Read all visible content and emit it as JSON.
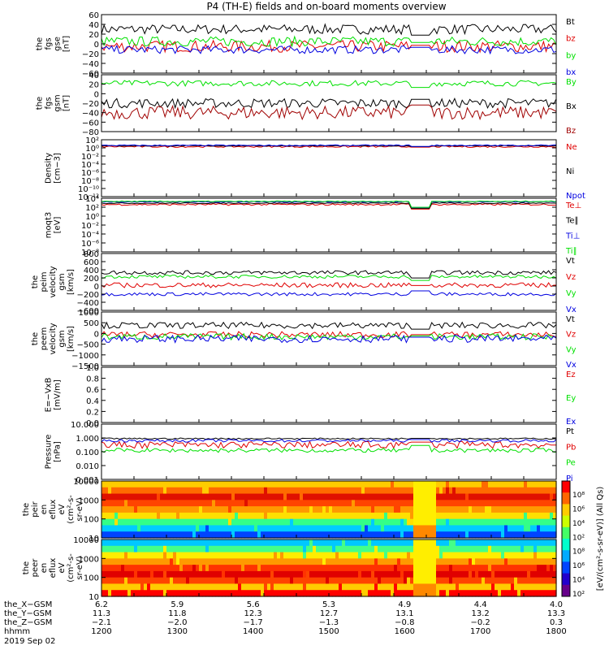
{
  "title": "P4 (TH-E) fields and on-board moments overview",
  "colors": {
    "black": "#000000",
    "red": "#e00000",
    "green": "#00e000",
    "blue": "#0000e0",
    "darkred": "#a00000"
  },
  "chart_data": [
    {
      "type": "line",
      "ylabel": [
        "the",
        "fgs",
        "gse",
        "[nT]"
      ],
      "yticks": [
        "60",
        "40",
        "20",
        "0",
        "−20",
        "−40",
        "−60"
      ],
      "ylim": [
        -60,
        60
      ],
      "series": [
        {
          "name": "Bt",
          "color": "black",
          "level": 30,
          "noise": 10
        },
        {
          "name": "bz",
          "color": "red",
          "level": -5,
          "noise": 12
        },
        {
          "name": "by",
          "color": "green",
          "level": 5,
          "noise": 10
        },
        {
          "name": "bx",
          "color": "blue",
          "level": -12,
          "noise": 8
        }
      ]
    },
    {
      "type": "line",
      "ylabel": [
        "the",
        "fgs",
        "gsm",
        "[nT]"
      ],
      "yticks": [
        "40",
        "20",
        "0",
        "−20",
        "−40",
        "−60",
        "−80"
      ],
      "ylim": [
        -80,
        40
      ],
      "series": [
        {
          "name": "By",
          "color": "green",
          "level": 22,
          "noise": 6
        },
        {
          "name": "Bx",
          "color": "black",
          "level": -20,
          "noise": 10
        },
        {
          "name": "Bz",
          "color": "darkred",
          "level": -40,
          "noise": 14
        }
      ]
    },
    {
      "type": "line",
      "ylabel": [
        "Density",
        "[cm−3]"
      ],
      "yticks": [
        "10²",
        "10⁰",
        "10⁻²",
        "10⁻⁴",
        "10⁻⁶",
        "10⁻⁸",
        "10⁻¹⁰",
        "10⁻¹²"
      ],
      "ylim": [
        -12,
        2
      ],
      "scale": "log",
      "series": [
        {
          "name": "Ne",
          "color": "red",
          "level": 0.3,
          "noise": 0.2
        },
        {
          "name": "Ni",
          "color": "black",
          "level": 0.5,
          "noise": 0.1
        },
        {
          "name": "Npot",
          "color": "blue",
          "level": 0.6,
          "noise": 0.15
        }
      ]
    },
    {
      "type": "line",
      "ylabel": [
        "moqt3",
        "[eV]"
      ],
      "yticks": [
        "10⁴",
        "10²",
        "10⁰",
        "10⁻²",
        "10⁻⁴",
        "10⁻⁶",
        "10⁻⁸"
      ],
      "ylim": [
        -8,
        4
      ],
      "scale": "log",
      "series": [
        {
          "name": "Te⊥",
          "color": "red",
          "level": 2.6,
          "noise": 0.2
        },
        {
          "name": "Te∥",
          "color": "black",
          "level": 2.9,
          "noise": 0.1
        },
        {
          "name": "Ti⊥",
          "color": "blue",
          "level": 3.2,
          "noise": 0.1
        },
        {
          "name": "Ti∥",
          "color": "green",
          "level": 3.3,
          "noise": 0.1
        }
      ]
    },
    {
      "type": "line",
      "ylabel": [
        "the",
        "peim",
        "velocity",
        "gsm",
        "[km/s]"
      ],
      "yticks": [
        "800",
        "600",
        "400",
        "200",
        "0",
        "−200",
        "−400",
        "−600"
      ],
      "ylim": [
        -600,
        800
      ],
      "series": [
        {
          "name": "Vt",
          "color": "black",
          "level": 330,
          "noise": 50
        },
        {
          "name": "Vz",
          "color": "red",
          "level": 20,
          "noise": 60
        },
        {
          "name": "Vy",
          "color": "green",
          "level": 230,
          "noise": 40
        },
        {
          "name": "Vx",
          "color": "blue",
          "level": -200,
          "noise": 40
        }
      ]
    },
    {
      "type": "line",
      "ylabel": [
        "the",
        "peem",
        "velocity",
        "gsm",
        "[km/s]"
      ],
      "yticks": [
        "1000",
        "500",
        "0",
        "−500",
        "−1000",
        "−1500"
      ],
      "ylim": [
        -1500,
        1100
      ],
      "series": [
        {
          "name": "Vt",
          "color": "black",
          "level": 450,
          "noise": 150
        },
        {
          "name": "Vz",
          "color": "red",
          "level": 0,
          "noise": 150
        },
        {
          "name": "Vy",
          "color": "green",
          "level": -100,
          "noise": 150
        },
        {
          "name": "Vx",
          "color": "blue",
          "level": -200,
          "noise": 180
        }
      ]
    },
    {
      "type": "line",
      "ylabel": [
        "E=−VxB",
        "[mV/m]"
      ],
      "yticks": [
        "1.0",
        "0.8",
        "0.6",
        "0.4",
        "0.2",
        "0.0"
      ],
      "ylim": [
        0,
        1
      ],
      "series": [
        {
          "name": "Ez",
          "color": "red"
        },
        {
          "name": "Ey",
          "color": "green"
        },
        {
          "name": "Ex",
          "color": "blue"
        }
      ]
    },
    {
      "type": "line",
      "ylabel": [
        "Pressure",
        "[nPa]"
      ],
      "yticks": [
        "10.000",
        "1.000",
        "0.100",
        "0.010",
        "0.001"
      ],
      "ylim": [
        -3,
        1
      ],
      "scale": "log",
      "series": [
        {
          "name": "Pt",
          "color": "black",
          "level": -0.05,
          "noise": 0.05
        },
        {
          "name": "Pb",
          "color": "red",
          "level": -0.5,
          "noise": 0.25
        },
        {
          "name": "Pe",
          "color": "green",
          "level": -0.9,
          "noise": 0.15
        },
        {
          "name": "Pi",
          "color": "blue",
          "level": -0.2,
          "noise": 0.1
        }
      ]
    },
    {
      "type": "heatmap",
      "ylabel": [
        "the",
        "peir",
        "en",
        "eflux",
        "eV",
        "(cm²-s-",
        "sr-eV)"
      ],
      "yticks": [
        "10000",
        "1000",
        "100",
        "10"
      ],
      "scale": "log"
    },
    {
      "type": "heatmap",
      "ylabel": [
        "the",
        "peer",
        "en",
        "eflux",
        "eV",
        "(cm²-s-",
        "sr-eV)"
      ],
      "yticks": [
        "10000",
        "1000",
        "100",
        "10"
      ],
      "scale": "log"
    }
  ],
  "colorbar": {
    "label": "[eV/(cm²-s-sr-eV)] (All Qs)",
    "ticks": [
      "10⁸",
      "10⁶",
      "10⁴",
      "10²",
      "10⁸",
      "10⁶",
      "10⁴",
      "10²"
    ]
  },
  "xaxis": {
    "rows": [
      {
        "label": "the_X−GSM",
        "values": [
          "6.2",
          "5.9",
          "5.6",
          "5.3",
          "4.9",
          "4.4",
          "4.0"
        ]
      },
      {
        "label": "the_Y−GSM",
        "values": [
          "11.3",
          "11.8",
          "12.3",
          "12.7",
          "13.1",
          "13.2",
          "13.3"
        ]
      },
      {
        "label": "the_Z−GSM",
        "values": [
          "−2.1",
          "−2.0",
          "−1.7",
          "−1.3",
          "−0.8",
          "−0.2",
          "0.3"
        ]
      },
      {
        "label": "hhmm",
        "values": [
          "1200",
          "1300",
          "1400",
          "1500",
          "1600",
          "1700",
          "1800"
        ]
      }
    ],
    "date": "2019 Sep 02"
  }
}
